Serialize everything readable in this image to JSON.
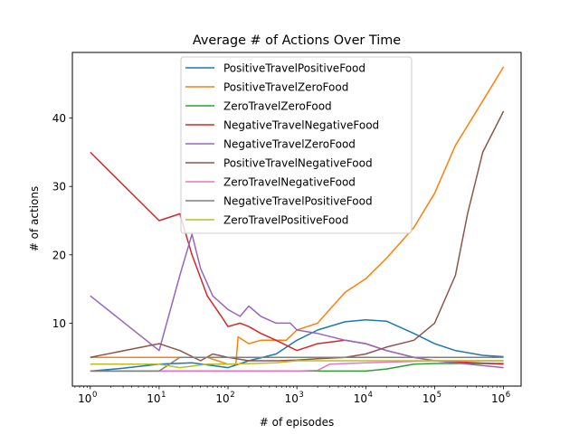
{
  "chart_data": {
    "type": "line",
    "title": "Average # of Actions Over Time",
    "xlabel": "# of episodes",
    "ylabel": "# of actions",
    "xscale": "log",
    "xlim": [
      0.55,
      1800000
    ],
    "ylim": [
      0.8,
      49.6
    ],
    "x_ticks": [
      {
        "value": 1,
        "label": "10",
        "exp": "0"
      },
      {
        "value": 10,
        "label": "10",
        "exp": "1"
      },
      {
        "value": 100,
        "label": "10",
        "exp": "2"
      },
      {
        "value": 1000,
        "label": "10",
        "exp": "3"
      },
      {
        "value": 10000,
        "label": "10",
        "exp": "4"
      },
      {
        "value": 100000,
        "label": "10",
        "exp": "5"
      },
      {
        "value": 1000000,
        "label": "10",
        "exp": "6"
      }
    ],
    "y_ticks": [
      {
        "value": 10,
        "label": "10"
      },
      {
        "value": 20,
        "label": "20"
      },
      {
        "value": 30,
        "label": "30"
      },
      {
        "value": 40,
        "label": "40"
      }
    ],
    "grid": false,
    "legend_position": "top-center",
    "series": [
      {
        "name": "PositiveTravelPositiveFood",
        "color": "#1f77b4",
        "points": [
          [
            1,
            3
          ],
          [
            3,
            3.4
          ],
          [
            10,
            4
          ],
          [
            30,
            4.2
          ],
          [
            100,
            3.5
          ],
          [
            200,
            4.5
          ],
          [
            500,
            5.5
          ],
          [
            1000,
            7.5
          ],
          [
            2000,
            9
          ],
          [
            5000,
            10.2
          ],
          [
            10000,
            10.5
          ],
          [
            20000,
            10.3
          ],
          [
            50000,
            8.5
          ],
          [
            100000,
            7
          ],
          [
            200000,
            6
          ],
          [
            500000,
            5.3
          ],
          [
            1000000,
            5.1
          ]
        ]
      },
      {
        "name": "PositiveTravelZeroFood",
        "color": "#ff7f0e",
        "points": [
          [
            1,
            5
          ],
          [
            10,
            5
          ],
          [
            50,
            5
          ],
          [
            100,
            4
          ],
          [
            130,
            4
          ],
          [
            140,
            8
          ],
          [
            200,
            7
          ],
          [
            300,
            7.5
          ],
          [
            500,
            7.5
          ],
          [
            700,
            7.5
          ],
          [
            1000,
            9
          ],
          [
            2000,
            10
          ],
          [
            3000,
            12
          ],
          [
            5000,
            14.5
          ],
          [
            10000,
            16.5
          ],
          [
            20000,
            19.5
          ],
          [
            50000,
            24
          ],
          [
            100000,
            29
          ],
          [
            200000,
            36
          ],
          [
            500000,
            42.5
          ],
          [
            1000000,
            47.5
          ]
        ]
      },
      {
        "name": "ZeroTravelZeroFood",
        "color": "#2ca02c",
        "points": [
          [
            1,
            3
          ],
          [
            10,
            3
          ],
          [
            100,
            3
          ],
          [
            1000,
            3
          ],
          [
            5000,
            3
          ],
          [
            10000,
            3
          ],
          [
            20000,
            3.3
          ],
          [
            50000,
            4
          ],
          [
            100000,
            4.1
          ],
          [
            200000,
            4.1
          ],
          [
            1000000,
            4.1
          ]
        ]
      },
      {
        "name": "NegativeTravelNegativeFood",
        "color": "#d62728",
        "points": [
          [
            1,
            35
          ],
          [
            10,
            25
          ],
          [
            20,
            26
          ],
          [
            30,
            20
          ],
          [
            50,
            14
          ],
          [
            80,
            11
          ],
          [
            100,
            9.5
          ],
          [
            150,
            10
          ],
          [
            200,
            9.5
          ],
          [
            300,
            8.5
          ],
          [
            500,
            7.5
          ],
          [
            1000,
            6
          ],
          [
            2000,
            7
          ],
          [
            5000,
            7.5
          ],
          [
            10000,
            7
          ],
          [
            20000,
            6
          ],
          [
            50000,
            5
          ],
          [
            100000,
            4.5
          ],
          [
            1000000,
            4
          ]
        ]
      },
      {
        "name": "NegativeTravelZeroFood",
        "color": "#9467bd",
        "points": [
          [
            1,
            14
          ],
          [
            10,
            6
          ],
          [
            20,
            17
          ],
          [
            30,
            23
          ],
          [
            40,
            18
          ],
          [
            60,
            14
          ],
          [
            100,
            12
          ],
          [
            150,
            11
          ],
          [
            200,
            12.5
          ],
          [
            300,
            11
          ],
          [
            500,
            10
          ],
          [
            800,
            10
          ],
          [
            1000,
            9
          ],
          [
            2000,
            8.5
          ],
          [
            5000,
            7.5
          ],
          [
            10000,
            7
          ],
          [
            20000,
            6
          ],
          [
            50000,
            5
          ],
          [
            100000,
            4.5
          ],
          [
            1000000,
            3.5
          ]
        ]
      },
      {
        "name": "PositiveTravelNegativeFood",
        "color": "#8c564b",
        "points": [
          [
            1,
            5
          ],
          [
            10,
            7
          ],
          [
            20,
            6
          ],
          [
            40,
            4.5
          ],
          [
            60,
            5.5
          ],
          [
            100,
            5
          ],
          [
            200,
            4.5
          ],
          [
            500,
            4.5
          ],
          [
            1000,
            4.6
          ],
          [
            2000,
            4.8
          ],
          [
            5000,
            5
          ],
          [
            10000,
            5.5
          ],
          [
            20000,
            6.5
          ],
          [
            50000,
            7.5
          ],
          [
            100000,
            10
          ],
          [
            200000,
            17
          ],
          [
            300000,
            26
          ],
          [
            500000,
            35
          ],
          [
            1000000,
            41
          ]
        ]
      },
      {
        "name": "ZeroTravelNegativeFood",
        "color": "#e377c2",
        "points": [
          [
            1,
            3
          ],
          [
            10,
            3
          ],
          [
            100,
            3
          ],
          [
            1000,
            3
          ],
          [
            2000,
            3.1
          ],
          [
            3000,
            4
          ],
          [
            10000,
            4.2
          ],
          [
            100000,
            4.5
          ],
          [
            1000000,
            4.5
          ]
        ]
      },
      {
        "name": "NegativeTravelPositiveFood",
        "color": "#7f7f7f",
        "points": [
          [
            1,
            3
          ],
          [
            10,
            3
          ],
          [
            20,
            5
          ],
          [
            50,
            5
          ],
          [
            100,
            5
          ],
          [
            1000,
            5
          ],
          [
            10000,
            5
          ],
          [
            100000,
            5
          ],
          [
            1000000,
            5
          ]
        ]
      },
      {
        "name": "ZeroTravelPositiveFood",
        "color": "#bcbd22",
        "points": [
          [
            1,
            4
          ],
          [
            10,
            4
          ],
          [
            20,
            3.5
          ],
          [
            50,
            4
          ],
          [
            100,
            4
          ],
          [
            500,
            4.2
          ],
          [
            1000,
            4.5
          ],
          [
            10000,
            4.5
          ],
          [
            100000,
            4.5
          ],
          [
            1000000,
            4.5
          ]
        ]
      }
    ]
  }
}
